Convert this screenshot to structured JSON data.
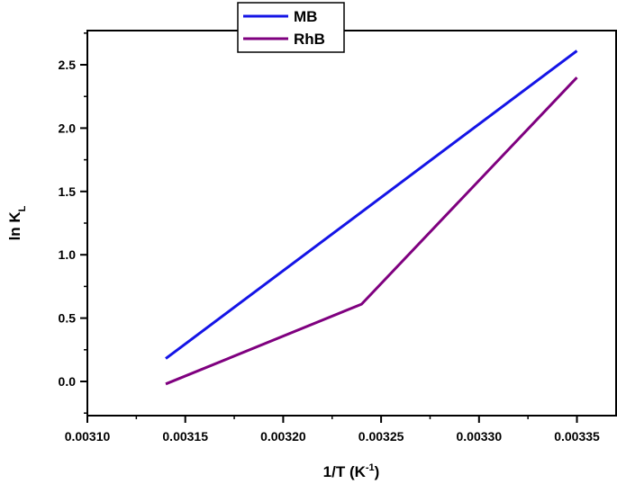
{
  "chart_data": {
    "type": "line",
    "xlabel": "1/T (K",
    "xlabel_sup": "-1",
    "xlabel_end": ")",
    "ylabel": "ln K",
    "ylabel_sub": "L",
    "xlim": [
      0.0031,
      0.00337
    ],
    "ylim": [
      -0.27,
      2.77
    ],
    "xticks": [
      0.0031,
      0.00315,
      0.0032,
      0.00325,
      0.0033,
      0.00335
    ],
    "xtick_labels": [
      "0.00310",
      "0.00315",
      "0.00320",
      "0.00325",
      "0.00330",
      "0.00335"
    ],
    "yticks": [
      0.0,
      0.5,
      1.0,
      1.5,
      2.0,
      2.5
    ],
    "ytick_labels": [
      "0.0",
      "0.5",
      "1.0",
      "1.5",
      "2.0",
      "2.5"
    ],
    "grid": false,
    "legend_position": "top-center",
    "series": [
      {
        "name": "MB",
        "color": "#1414e6",
        "x": [
          0.00314,
          0.00335
        ],
        "y": [
          0.18,
          2.61
        ]
      },
      {
        "name": "RhB",
        "color": "#7f007f",
        "x": [
          0.00314,
          0.00324,
          0.00335
        ],
        "y": [
          -0.02,
          0.61,
          2.4
        ]
      }
    ]
  }
}
